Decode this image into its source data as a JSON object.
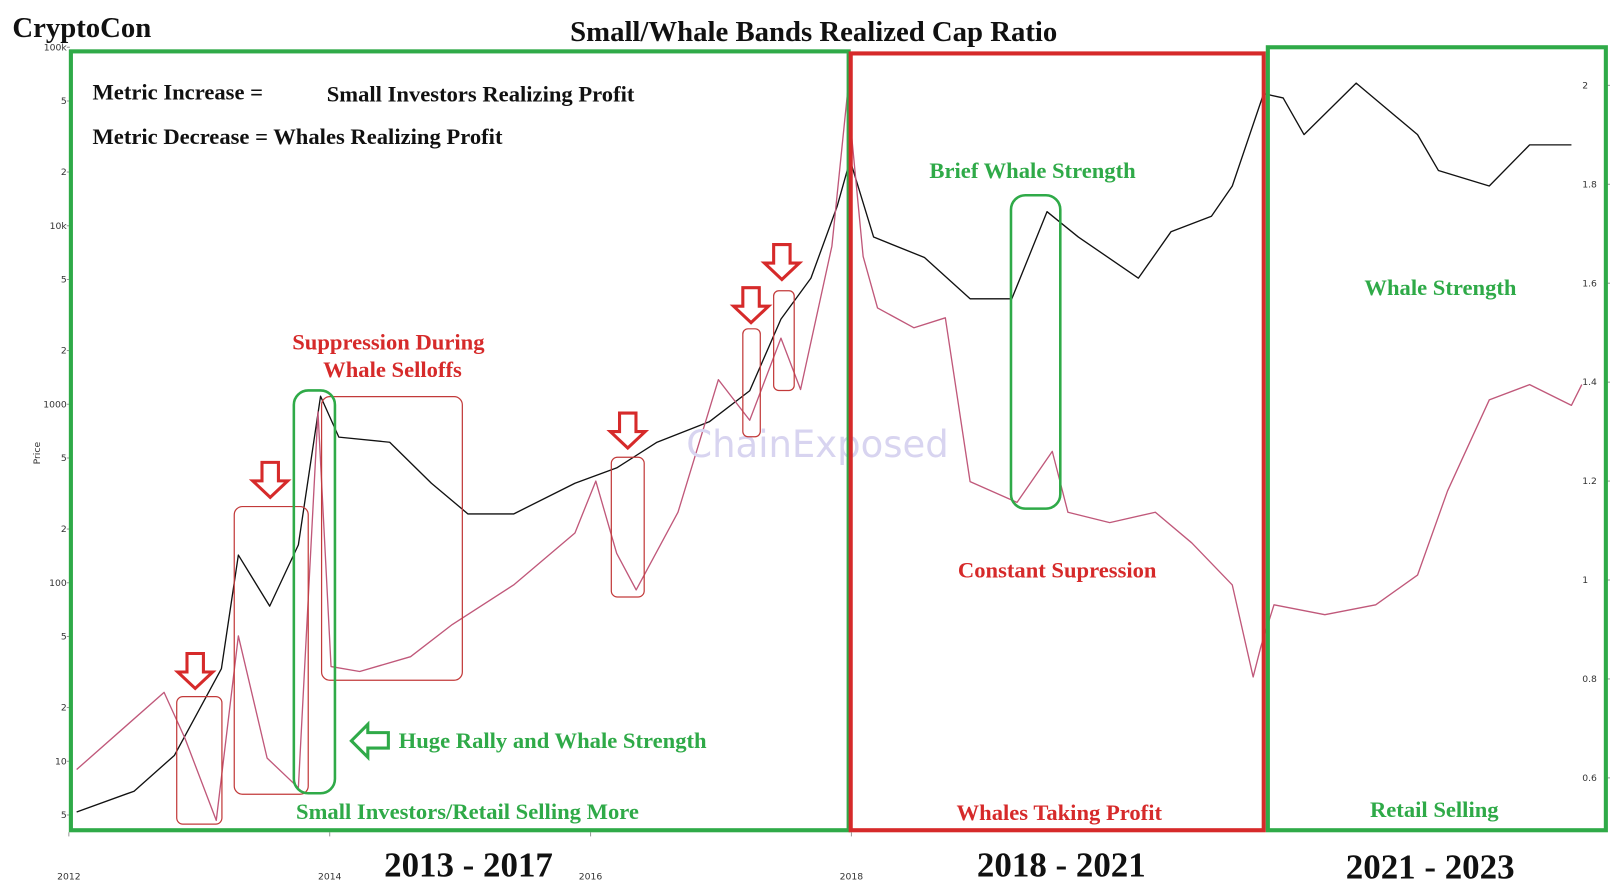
{
  "brand": "CryptoCon",
  "watermark": "ChainExposed",
  "chart_data": {
    "type": "line",
    "title": "Small/Whale Bands Realized Cap Ratio",
    "ylabel": "Price",
    "xlim": [
      2012,
      2023.8
    ],
    "xticks": [
      2012,
      2014,
      2016,
      2018
    ],
    "ylim": [
      4,
      100000
    ],
    "ylog": true,
    "yticks": [
      {
        "value": 5,
        "label": "5"
      },
      10,
      {
        "value": 20,
        "label": "2"
      },
      {
        "value": 50,
        "label": "5"
      },
      100,
      {
        "value": 200,
        "label": "2"
      },
      {
        "value": 500,
        "label": "5"
      },
      1000,
      {
        "value": 2000,
        "label": "2"
      },
      {
        "value": 5000,
        "label": "5"
      },
      {
        "value": 10000,
        "label": "10k"
      },
      {
        "value": 20000,
        "label": "2"
      },
      {
        "value": 50000,
        "label": "5"
      },
      {
        "value": 100000,
        "label": "100k"
      }
    ],
    "y2lim": [
      0.49,
      2.077
    ],
    "y2ticks": [
      0.6,
      0.8,
      1,
      1.2,
      1.4,
      1.6,
      1.8,
      2
    ],
    "series": [
      {
        "color": "#111111",
        "axis": "y",
        "x": [
          2012.06,
          2012.5,
          2012.81,
          2013.17,
          2013.3,
          2013.54,
          2013.76,
          2013.93,
          2014.07,
          2014.46,
          2014.78,
          2015.06,
          2015.41,
          2015.88,
          2016.2,
          2016.51,
          2016.91,
          2017.22,
          2017.46,
          2017.69,
          2017.89,
          2017.99,
          2018.17,
          2018.56,
          2018.91,
          2019.23,
          2019.5,
          2019.74,
          2020.2,
          2020.45,
          2020.76,
          2020.92,
          2021.16,
          2021.31,
          2021.47,
          2021.87,
          2022.34,
          2022.5,
          2022.89,
          2023.2,
          2023.52
        ],
        "values": [
          5.2,
          6.8,
          10.8,
          33,
          143,
          74,
          163,
          1110,
          655,
          613,
          361,
          243,
          243,
          361,
          440,
          613,
          798,
          1190,
          3000,
          5090,
          12800,
          23300,
          8650,
          6640,
          3900,
          3900,
          12000,
          8650,
          5090,
          9250,
          11300,
          16700,
          55000,
          52000,
          32400,
          63000,
          32400,
          20400,
          16700,
          28400,
          28400
        ]
      },
      {
        "color": "#c0587a",
        "axis": "y2",
        "x": [
          2012.06,
          2012.73,
          2012.89,
          2013.13,
          2013.3,
          2013.52,
          2013.76,
          2013.91,
          2014.01,
          2014.23,
          2014.62,
          2014.94,
          2015.41,
          2015.88,
          2016.04,
          2016.2,
          2016.35,
          2016.67,
          2016.98,
          2017.22,
          2017.46,
          2017.61,
          2017.85,
          2017.97,
          2018.09,
          2018.2,
          2018.48,
          2018.72,
          2018.91,
          2019.27,
          2019.54,
          2019.66,
          2019.98,
          2020.33,
          2020.61,
          2020.92,
          2021.08,
          2021.14,
          2021.24,
          2021.63,
          2022.02,
          2022.34,
          2022.57,
          2022.89,
          2023.2,
          2023.52,
          2023.6
        ],
        "values": [
          0.617,
          0.773,
          0.68,
          0.514,
          0.887,
          0.64,
          0.58,
          1.34,
          0.825,
          0.815,
          0.845,
          0.91,
          0.99,
          1.095,
          1.2,
          1.054,
          0.98,
          1.137,
          1.405,
          1.323,
          1.489,
          1.385,
          1.675,
          1.985,
          1.654,
          1.55,
          1.51,
          1.53,
          1.199,
          1.157,
          1.26,
          1.137,
          1.116,
          1.137,
          1.075,
          0.99,
          0.804,
          0.866,
          0.95,
          0.93,
          0.95,
          1.01,
          1.18,
          1.364,
          1.395,
          1.353,
          1.395
        ]
      }
    ],
    "annotations": {
      "metric_increase": "Metric Increase =",
      "metric_increase_meaning": "Small Investors Realizing Profit",
      "metric_decrease": "Metric Decrease = Whales Realizing Profit",
      "suppression_1": "Suppression During",
      "suppression_2": "Whale Selloffs",
      "huge_rally": "Huge Rally and Whale Strength",
      "retail_selling_more": "Small Investors/Retail Selling More",
      "brief_whale": "Brief Whale Strength",
      "constant": "Constant Supression",
      "whales_profit": "Whales Taking Profit",
      "whale_strength": "Whale Strength",
      "retail_selling": "Retail Selling"
    },
    "periods": [
      "2013 - 2017",
      "2018 - 2021",
      "2021 - 2023"
    ]
  }
}
